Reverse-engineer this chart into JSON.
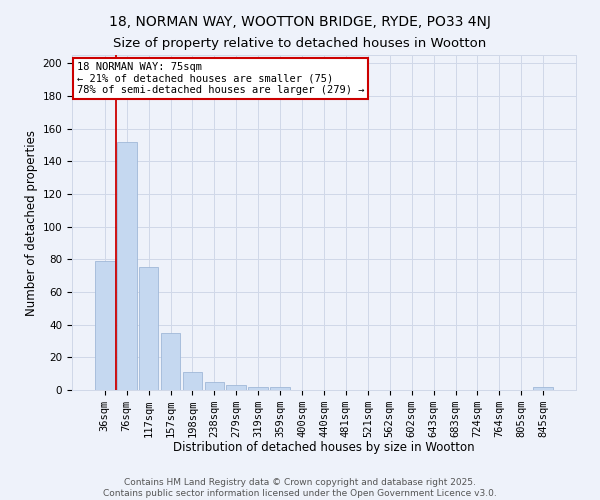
{
  "title1": "18, NORMAN WAY, WOOTTON BRIDGE, RYDE, PO33 4NJ",
  "title2": "Size of property relative to detached houses in Wootton",
  "xlabel": "Distribution of detached houses by size in Wootton",
  "ylabel": "Number of detached properties",
  "categories": [
    "36sqm",
    "76sqm",
    "117sqm",
    "157sqm",
    "198sqm",
    "238sqm",
    "279sqm",
    "319sqm",
    "359sqm",
    "400sqm",
    "440sqm",
    "481sqm",
    "521sqm",
    "562sqm",
    "602sqm",
    "643sqm",
    "683sqm",
    "724sqm",
    "764sqm",
    "805sqm",
    "845sqm"
  ],
  "values": [
    79,
    152,
    75,
    35,
    11,
    5,
    3,
    2,
    2,
    0,
    0,
    0,
    0,
    0,
    0,
    0,
    0,
    0,
    0,
    0,
    2
  ],
  "bar_color": "#c5d8f0",
  "bar_edge_color": "#a0b8d8",
  "grid_color": "#d0d8e8",
  "background_color": "#eef2fa",
  "vline_color": "#cc0000",
  "vline_x_index": 1,
  "annotation_text_line1": "18 NORMAN WAY: 75sqm",
  "annotation_text_line2": "← 21% of detached houses are smaller (75)",
  "annotation_text_line3": "78% of semi-detached houses are larger (279) →",
  "annotation_box_color": "#cc0000",
  "annotation_bg": "#ffffff",
  "ylim": [
    0,
    205
  ],
  "yticks": [
    0,
    20,
    40,
    60,
    80,
    100,
    120,
    140,
    160,
    180,
    200
  ],
  "footer1": "Contains HM Land Registry data © Crown copyright and database right 2025.",
  "footer2": "Contains public sector information licensed under the Open Government Licence v3.0.",
  "title1_fontsize": 10,
  "title2_fontsize": 9.5,
  "axis_label_fontsize": 8.5,
  "tick_fontsize": 7.5,
  "annotation_fontsize": 7.5,
  "footer_fontsize": 6.5
}
